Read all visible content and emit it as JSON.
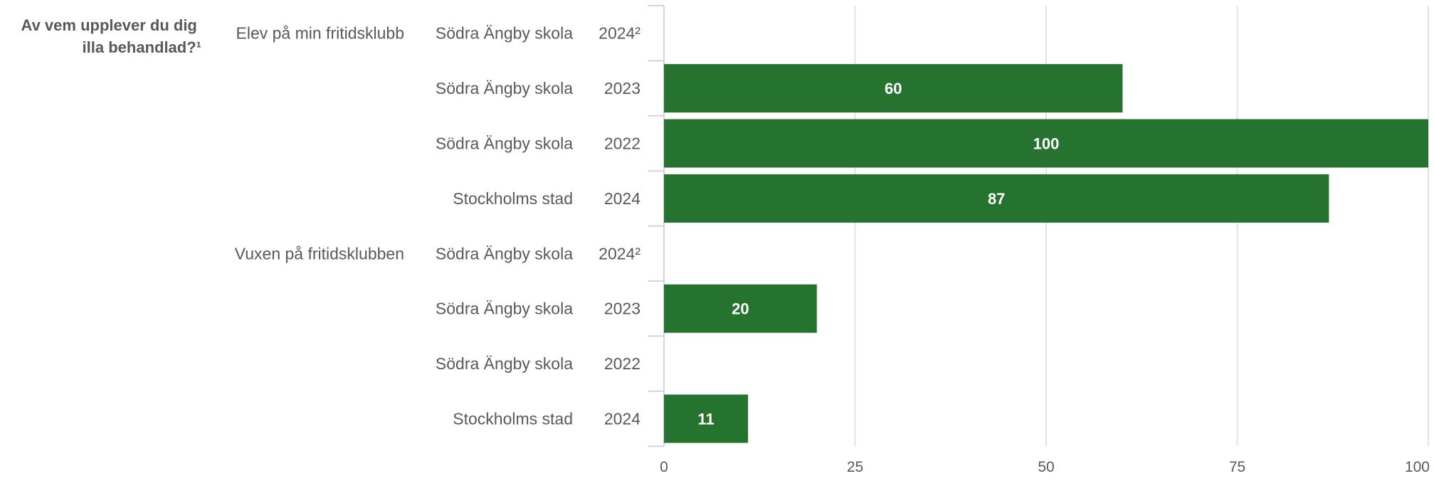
{
  "chart_data": {
    "type": "bar",
    "orientation": "horizontal",
    "title": "Av vem upplever du dig illa behandlad?¹",
    "title_lines": [
      "Av vem upplever du dig",
      "illa behandlad?¹"
    ],
    "xlim": [
      0,
      100
    ],
    "xticks": [
      0,
      25,
      50,
      75,
      100
    ],
    "grid": true,
    "bar_color": "#267330",
    "groups": [
      {
        "label": "Elev på min fritidsklubb",
        "rows": [
          {
            "school": "Södra Ängby skola",
            "year": "2024²",
            "value": null
          },
          {
            "school": "Södra Ängby skola",
            "year": "2023",
            "value": 60
          },
          {
            "school": "Södra Ängby skola",
            "year": "2022",
            "value": 100
          },
          {
            "school": "Stockholms stad",
            "year": "2024",
            "value": 87
          }
        ]
      },
      {
        "label": "Vuxen på fritidsklubben",
        "rows": [
          {
            "school": "Södra Ängby skola",
            "year": "2024²",
            "value": null
          },
          {
            "school": "Södra Ängby skola",
            "year": "2023",
            "value": 20
          },
          {
            "school": "Södra Ängby skola",
            "year": "2022",
            "value": null
          },
          {
            "school": "Stockholms stad",
            "year": "2024",
            "value": 11
          }
        ]
      }
    ]
  }
}
